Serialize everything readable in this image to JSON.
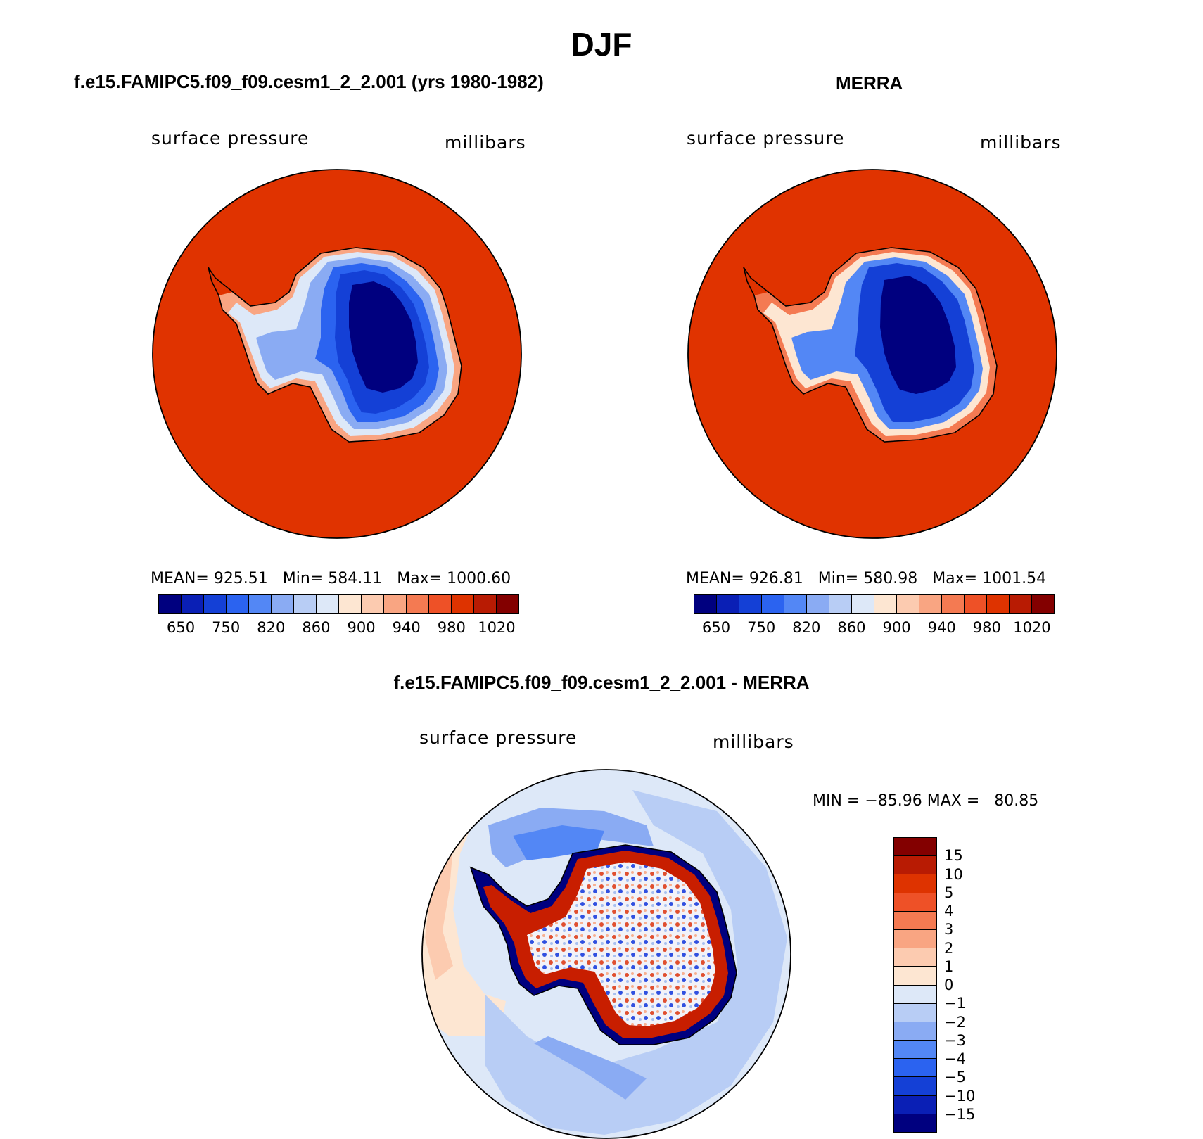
{
  "title": "DJF",
  "panels": {
    "left": {
      "title": "f.e15.FAMIPC5.f09_f09.cesm1_2_2.001 (yrs 1980-1982)",
      "variable": "surface pressure",
      "units": "millibars",
      "stats": "MEAN= 925.51   Min= 584.11   Max= 1000.60"
    },
    "right": {
      "title": "MERRA",
      "variable": "surface pressure",
      "units": "millibars",
      "stats": "MEAN= 926.81   Min= 580.98   Max= 1001.54"
    },
    "diff": {
      "title": "f.e15.FAMIPC5.f09_f09.cesm1_2_2.001 - MERRA",
      "variable": "surface pressure",
      "units": "millibars",
      "stats": "MIN = −85.96 MAX =   80.85"
    }
  },
  "colorbar_abs": {
    "colors": [
      "#00007f",
      "#0a1fb5",
      "#1440d6",
      "#2b63f0",
      "#5387f5",
      "#8aabf3",
      "#b8cdf5",
      "#dde8f8",
      "#fde6d2",
      "#fccbb0",
      "#f9a582",
      "#f47a52",
      "#ee5127",
      "#de3300",
      "#b81b03",
      "#830000"
    ],
    "tick_labels": [
      "650",
      "750",
      "820",
      "860",
      "900",
      "940",
      "980",
      "1020"
    ]
  },
  "colorbar_diff": {
    "colors": [
      "#830000",
      "#b81b03",
      "#de3300",
      "#ee5127",
      "#f47a52",
      "#f9a582",
      "#fccbb0",
      "#fde6d2",
      "#dde8f8",
      "#b8cdf5",
      "#8aabf3",
      "#5387f5",
      "#2b63f0",
      "#1440d6",
      "#0a1fb5",
      "#00007f"
    ],
    "tick_labels": [
      "15",
      "10",
      "5",
      "4",
      "3",
      "2",
      "1",
      "0",
      "−1",
      "−2",
      "−3",
      "−4",
      "−5",
      "−10",
      "−15"
    ]
  },
  "map_colors": {
    "ocean_abs": "#e03300",
    "ice_deep": "#00007f",
    "ice_mid": "#1440d6",
    "ice_light": "#5387f5",
    "diff_pale_blue": "#dde8f8",
    "diff_light_blue": "#b8cdf5",
    "diff_mid_blue": "#8aabf3",
    "diff_pale_red": "#fde6d2",
    "diff_red": "#c81e00"
  }
}
